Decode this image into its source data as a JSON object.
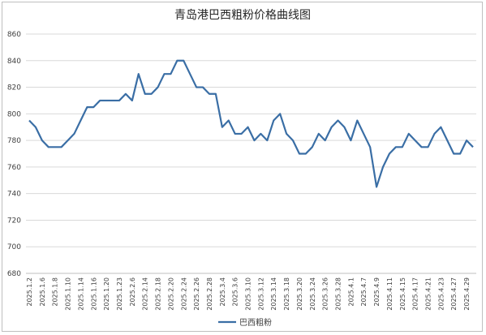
{
  "chart_data": {
    "type": "line",
    "title": "青岛港巴西粗粉价格曲线图",
    "xlabel": "",
    "ylabel": "",
    "ylim": [
      680,
      860
    ],
    "ystep": 20,
    "grid": true,
    "legend_position": "bottom",
    "tick_labels": [
      "2025.1.2",
      "2025.1.6",
      "2025.1.8",
      "2025.1.10",
      "2025.1.14",
      "2025.1.16",
      "2025.1.20",
      "2025.1.23",
      "2025.2.6",
      "2025.2.14",
      "2025.2.18",
      "2025.2.20",
      "2025.2.24",
      "2025.2.26",
      "2025.2.28",
      "2025.3.4",
      "2025.3.6",
      "2025.3.10",
      "2025.3.12",
      "2025.3.14",
      "2025.3.18",
      "2025.3.20",
      "2025.3.24",
      "2025.3.26",
      "2025.3.28",
      "2025.4.1",
      "2025.4.7",
      "2025.4.9",
      "2025.4.11",
      "2025.4.15",
      "2025.4.17",
      "2025.4.21",
      "2025.4.23",
      "2025.4.27",
      "2025.4.29"
    ],
    "series": [
      {
        "name": "巴西粗粉",
        "color": "#3a6ea5",
        "values": [
          795,
          790,
          780,
          775,
          775,
          775,
          780,
          785,
          795,
          805,
          805,
          810,
          810,
          810,
          810,
          815,
          810,
          830,
          815,
          815,
          820,
          830,
          830,
          840,
          840,
          830,
          820,
          820,
          815,
          815,
          790,
          795,
          785,
          785,
          790,
          780,
          785,
          780,
          795,
          800,
          785,
          780,
          770,
          770,
          775,
          785,
          780,
          790,
          795,
          790,
          780,
          795,
          785,
          775,
          745,
          760,
          770,
          775,
          775,
          785,
          780,
          775,
          775,
          785,
          790,
          780,
          770,
          770,
          780,
          775
        ]
      }
    ]
  }
}
